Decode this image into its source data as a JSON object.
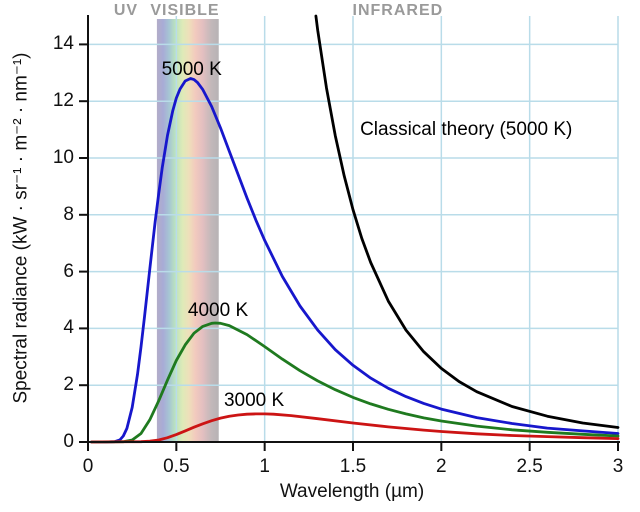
{
  "chart_data": {
    "type": "line",
    "title": "",
    "xlabel": "Wavelength (µm)",
    "ylabel": "Spectral radiance (kW · sr⁻¹ · m⁻² · nm⁻¹)",
    "xlim": [
      0,
      3
    ],
    "ylim": [
      0,
      15
    ],
    "grid": true,
    "gridline_color": "#b9dce9",
    "axis_color": "#111111",
    "x_ticks": [
      0,
      0.5,
      1,
      1.5,
      2,
      2.5,
      3
    ],
    "x_tick_labels": [
      "0",
      "0.5",
      "1",
      "1.5",
      "2",
      "2.5",
      "3"
    ],
    "y_ticks": [
      0,
      2,
      4,
      6,
      8,
      10,
      12,
      14
    ],
    "y_tick_labels": [
      "0",
      "2",
      "4",
      "6",
      "8",
      "10",
      "12",
      "14"
    ],
    "legend_position": "none",
    "series": [
      {
        "id": "curve-classical-theory",
        "name": "Classical theory (5000 K)",
        "color": "#000000",
        "points": [
          [
            1.29,
            15
          ],
          [
            1.3,
            14.5
          ],
          [
            1.35,
            12.46
          ],
          [
            1.4,
            10.78
          ],
          [
            1.45,
            9.37
          ],
          [
            1.5,
            8.18
          ],
          [
            1.55,
            7.17
          ],
          [
            1.6,
            6.32
          ],
          [
            1.7,
            4.96
          ],
          [
            1.8,
            3.94
          ],
          [
            1.9,
            3.18
          ],
          [
            2.0,
            2.59
          ],
          [
            2.1,
            2.13
          ],
          [
            2.2,
            1.77
          ],
          [
            2.4,
            1.25
          ],
          [
            2.6,
            0.91
          ],
          [
            2.8,
            0.67
          ],
          [
            3.0,
            0.51
          ]
        ]
      },
      {
        "id": "curve-5000k",
        "name": "5000 K",
        "color": "#1717cc",
        "points": [
          [
            0.02,
            0
          ],
          [
            0.1,
            0
          ],
          [
            0.15,
            0.01
          ],
          [
            0.18,
            0.07
          ],
          [
            0.2,
            0.21
          ],
          [
            0.22,
            0.48
          ],
          [
            0.25,
            1.22
          ],
          [
            0.28,
            2.38
          ],
          [
            0.3,
            3.35
          ],
          [
            0.32,
            4.41
          ],
          [
            0.35,
            6.09
          ],
          [
            0.38,
            7.74
          ],
          [
            0.4,
            8.74
          ],
          [
            0.42,
            9.65
          ],
          [
            0.45,
            10.8
          ],
          [
            0.48,
            11.67
          ],
          [
            0.5,
            12.11
          ],
          [
            0.52,
            12.42
          ],
          [
            0.55,
            12.71
          ],
          [
            0.58,
            12.8
          ],
          [
            0.6,
            12.76
          ],
          [
            0.62,
            12.66
          ],
          [
            0.65,
            12.41
          ],
          [
            0.7,
            11.81
          ],
          [
            0.75,
            11.06
          ],
          [
            0.8,
            10.24
          ],
          [
            0.85,
            9.41
          ],
          [
            0.9,
            8.59
          ],
          [
            0.95,
            7.82
          ],
          [
            1.0,
            7.1
          ],
          [
            1.1,
            5.83
          ],
          [
            1.2,
            4.79
          ],
          [
            1.3,
            3.94
          ],
          [
            1.4,
            3.25
          ],
          [
            1.5,
            2.7
          ],
          [
            1.6,
            2.25
          ],
          [
            1.7,
            1.89
          ],
          [
            1.8,
            1.6
          ],
          [
            1.9,
            1.36
          ],
          [
            2.0,
            1.16
          ],
          [
            2.2,
            0.86
          ],
          [
            2.4,
            0.65
          ],
          [
            2.6,
            0.49
          ],
          [
            2.8,
            0.39
          ],
          [
            3.0,
            0.3
          ]
        ]
      },
      {
        "id": "curve-4000k",
        "name": "4000 K",
        "color": "#1f7a1f",
        "points": [
          [
            0.02,
            0
          ],
          [
            0.2,
            0.01
          ],
          [
            0.25,
            0.07
          ],
          [
            0.3,
            0.3
          ],
          [
            0.35,
            0.78
          ],
          [
            0.4,
            1.45
          ],
          [
            0.45,
            2.18
          ],
          [
            0.5,
            2.87
          ],
          [
            0.55,
            3.42
          ],
          [
            0.6,
            3.83
          ],
          [
            0.65,
            4.07
          ],
          [
            0.7,
            4.18
          ],
          [
            0.72,
            4.19
          ],
          [
            0.75,
            4.18
          ],
          [
            0.8,
            4.1
          ],
          [
            0.9,
            3.78
          ],
          [
            1.0,
            3.36
          ],
          [
            1.1,
            2.92
          ],
          [
            1.2,
            2.51
          ],
          [
            1.3,
            2.15
          ],
          [
            1.4,
            1.84
          ],
          [
            1.5,
            1.57
          ],
          [
            1.6,
            1.34
          ],
          [
            1.7,
            1.15
          ],
          [
            1.8,
            0.99
          ],
          [
            1.9,
            0.85
          ],
          [
            2.0,
            0.74
          ],
          [
            2.2,
            0.56
          ],
          [
            2.4,
            0.43
          ],
          [
            2.6,
            0.34
          ],
          [
            2.8,
            0.27
          ],
          [
            3.0,
            0.21
          ]
        ]
      },
      {
        "id": "curve-3000k",
        "name": "3000 K",
        "color": "#cc1414",
        "points": [
          [
            0.02,
            0
          ],
          [
            0.3,
            0.01
          ],
          [
            0.35,
            0.03
          ],
          [
            0.4,
            0.07
          ],
          [
            0.45,
            0.15
          ],
          [
            0.5,
            0.26
          ],
          [
            0.55,
            0.39
          ],
          [
            0.6,
            0.52
          ],
          [
            0.65,
            0.64
          ],
          [
            0.7,
            0.75
          ],
          [
            0.75,
            0.84
          ],
          [
            0.8,
            0.91
          ],
          [
            0.85,
            0.95
          ],
          [
            0.9,
            0.98
          ],
          [
            0.95,
            0.99
          ],
          [
            1.0,
            0.99
          ],
          [
            1.05,
            0.98
          ],
          [
            1.15,
            0.93
          ],
          [
            1.3,
            0.82
          ],
          [
            1.5,
            0.67
          ],
          [
            1.7,
            0.53
          ],
          [
            1.9,
            0.42
          ],
          [
            2.0,
            0.37
          ],
          [
            2.2,
            0.29
          ],
          [
            2.4,
            0.23
          ],
          [
            2.6,
            0.19
          ],
          [
            2.8,
            0.15
          ],
          [
            3.0,
            0.12
          ]
        ]
      }
    ],
    "annotations": [
      {
        "id": "curve-label-5000k",
        "text": "5000 K",
        "x": 0.587,
        "y": 13.1,
        "align": "center"
      },
      {
        "id": "curve-label-4000k",
        "text": "4000 K",
        "x": 0.736,
        "y": 4.6,
        "align": "center"
      },
      {
        "id": "curve-label-3000k",
        "text": "3000 K",
        "x": 0.94,
        "y": 1.43,
        "align": "center"
      },
      {
        "id": "classical-theory-label",
        "text": "Classical theory (5000 K)",
        "x": 1.54,
        "y": 11.0,
        "align": "left"
      }
    ],
    "region_labels": [
      {
        "id": "region-label-uv",
        "text": "UV",
        "x": 0.215
      },
      {
        "id": "region-label-visible",
        "text": "VISIBLE",
        "x": 0.549
      },
      {
        "id": "region-label-infrared",
        "text": "INFRARED",
        "x": 1.754
      }
    ],
    "visible_band": {
      "x_start": 0.39,
      "x_end": 0.74,
      "stops": [
        {
          "o": 0.0,
          "c": "#b3adc8"
        },
        {
          "o": 0.1,
          "c": "#a8abd6"
        },
        {
          "o": 0.2,
          "c": "#a6c6d4"
        },
        {
          "o": 0.3,
          "c": "#bce4bc"
        },
        {
          "o": 0.42,
          "c": "#dfeab8"
        },
        {
          "o": 0.52,
          "c": "#eedfba"
        },
        {
          "o": 0.62,
          "c": "#f2cabe"
        },
        {
          "o": 0.74,
          "c": "#e3bfc0"
        },
        {
          "o": 0.88,
          "c": "#c2b8ba"
        },
        {
          "o": 1.0,
          "c": "#b7b3b5"
        }
      ]
    }
  }
}
